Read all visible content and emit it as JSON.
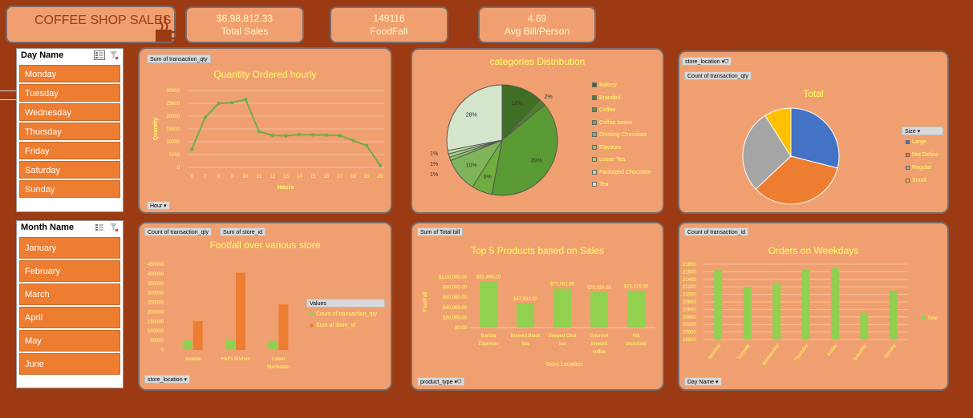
{
  "title": "COFFEE SHOP SALES",
  "kpis": [
    {
      "value": "$6,98,812.33",
      "label": "Total Sales"
    },
    {
      "value": "149116",
      "label": "FoodFall"
    },
    {
      "value": "4.69",
      "label": "Avg Bill/Person"
    }
  ],
  "slicer_day": {
    "header": "Day Name",
    "items": [
      "Monday",
      "Tuesday",
      "Wednesday",
      "Thursday",
      "Friday",
      "Saturday",
      "Sunday"
    ]
  },
  "slicer_month": {
    "header": "Month Name",
    "items": [
      "January",
      "February",
      "March",
      "April",
      "May",
      "June"
    ]
  },
  "hourly": {
    "field_btn": "Sum of transaction_qty",
    "axis_btn": "Hour",
    "title": "Quantity Ordered hourly",
    "xlabel": "Hours",
    "ylabel": "Quantity"
  },
  "categories": {
    "title": "categories Distribution",
    "legend": [
      "Bakery",
      "Branded",
      "Coffee",
      "Coffee beans",
      "Drinking Chocolate",
      "Flavours",
      "Loose Tea",
      "Packaged Chocolate",
      "Tea"
    ],
    "legend_colors": [
      "#3f6e24",
      "#4e7f2d",
      "#5a9a34",
      "#6fae3e",
      "#7fb55a",
      "#8fc36a",
      "#a3cf85",
      "#bcdca6",
      "#d4e5cc"
    ]
  },
  "size": {
    "field_btn": "store_location",
    "value_btn": "Count of transaction_qty",
    "title": "Total",
    "legend_header": "Size",
    "legend": [
      "Large",
      "Not Define",
      "Regular",
      "Small"
    ],
    "legend_colors": [
      "#4472c4",
      "#ed7d31",
      "#a5a5a5",
      "#ffc000"
    ]
  },
  "footfall": {
    "btn1": "Count of transaction_qty",
    "btn2": "Sum of store_id",
    "axis_btn": "store_location",
    "title": "Footfall over various store",
    "legend_header": "Values",
    "legend": [
      "Count of transaction_qty",
      "Sum of store_id"
    ],
    "legend_colors": [
      "#92d050",
      "#ed7d31"
    ]
  },
  "top5": {
    "field_btn": "Sum of Total bill",
    "axis_btn": "product_type",
    "title": "Top 5 Products based on Sales",
    "xlabel": "Store Location",
    "ylabel": "FootFall"
  },
  "weekday": {
    "field_btn": "Count of transaction_id",
    "axis_btn": "Day Name",
    "title": "Orders on Weekdays",
    "legend": [
      "Total"
    ],
    "legend_colors": [
      "#92d050"
    ]
  },
  "chart_data": [
    {
      "type": "line",
      "title": "Quantity Ordered hourly",
      "xlabel": "Hours",
      "ylabel": "Quantity",
      "x": [
        6,
        7,
        8,
        9,
        10,
        11,
        12,
        13,
        14,
        15,
        16,
        17,
        18,
        19,
        20
      ],
      "values": [
        7000,
        19500,
        25000,
        25200,
        26500,
        14000,
        12500,
        12300,
        12800,
        12700,
        12600,
        12400,
        10500,
        8500,
        700
      ],
      "ylim": [
        0,
        30000
      ],
      "yticks": [
        0,
        5000,
        10000,
        15000,
        20000,
        25000,
        30000
      ],
      "color": "#70ad47"
    },
    {
      "type": "pie",
      "title": "categories Distribution",
      "categories": [
        "Bakery",
        "Branded",
        "Coffee",
        "Coffee beans",
        "Drinking Chocolate",
        "Flavours",
        "Loose Tea",
        "Packaged Chocolate",
        "Tea"
      ],
      "values": [
        12,
        2,
        39,
        6,
        10,
        1,
        1,
        1,
        28
      ],
      "labels": [
        "12%",
        "2%",
        "39%",
        "6%",
        "10%",
        "1%",
        "1%",
        "1%",
        "28%"
      ]
    },
    {
      "type": "pie",
      "title": "Total",
      "categories": [
        "Large",
        "Not Define",
        "Regular",
        "Small"
      ],
      "values": [
        29,
        34,
        28,
        9
      ]
    },
    {
      "type": "bar",
      "title": "Footfall over various store",
      "categories": [
        "Astoria",
        "Hell's Kitchen",
        "Lower Manhattan"
      ],
      "series": [
        {
          "name": "Count of transaction_qty",
          "values": [
            50599,
            50735,
            47782
          ]
        },
        {
          "name": "Sum of store_id",
          "values": [
            151797,
            405880,
            238910
          ]
        }
      ],
      "ylim": [
        0,
        450000
      ],
      "yticks": [
        0,
        50000,
        100000,
        150000,
        200000,
        250000,
        300000,
        350000,
        400000,
        450000
      ]
    },
    {
      "type": "bar",
      "title": "Top 5 Products based on Sales",
      "xlabel": "Store Location",
      "ylabel": "FootFall",
      "categories": [
        "Barista Espresso",
        "Brewed Black tea",
        "Brewed Chai tea",
        "Gourmet brewed coffee",
        "Hot chocolate"
      ],
      "values": [
        91406.2,
        47932,
        77081.95,
        70034.6,
        72416
      ],
      "labels": [
        "$91,406.20",
        "$47,932.00",
        "$77,081.95",
        "$70,034.60",
        "$72,416.00"
      ],
      "ylim": [
        0,
        100000
      ],
      "yticks": [
        "$0.00",
        "$20,000.00",
        "$40,000.00",
        "$60,000.00",
        "$80,000.00",
        "$1,00,000.00"
      ]
    },
    {
      "type": "bar",
      "title": "Orders on Weekdays",
      "categories": [
        "Monday",
        "Tuesday",
        "Wednesday",
        "Thursday",
        "Friday",
        "Saturday",
        "Sunday"
      ],
      "values": [
        21643,
        21202,
        21310,
        21654,
        21701,
        20510,
        21096
      ],
      "ylim": [
        19800,
        21800
      ],
      "yticks": [
        19800,
        20000,
        20200,
        20400,
        20600,
        20800,
        21000,
        21200,
        21400,
        21600,
        21800
      ]
    }
  ]
}
